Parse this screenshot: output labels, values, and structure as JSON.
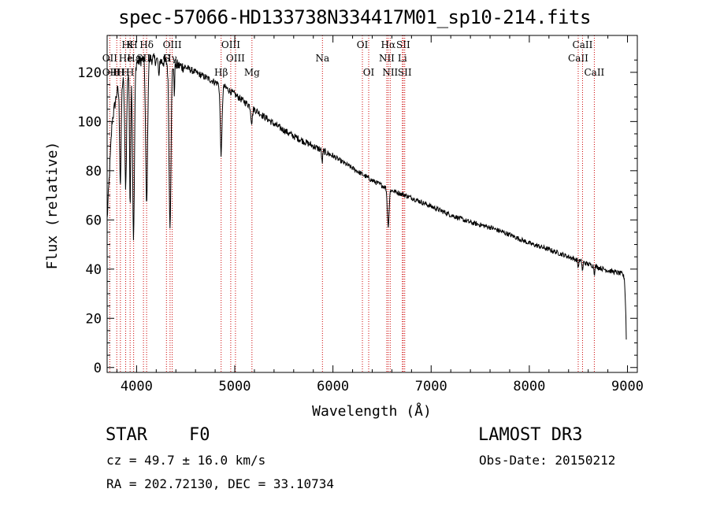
{
  "chart_data": {
    "type": "line",
    "title": "spec-57066-HD133738N334417M01_sp10-214.fits",
    "xlabel": "Wavelength (Å)",
    "ylabel": "Flux (relative)",
    "xlim": [
      3700,
      9100
    ],
    "ylim": [
      -2,
      135
    ],
    "x_ticks": [
      4000,
      5000,
      6000,
      7000,
      8000,
      9000
    ],
    "y_ticks": [
      0,
      20,
      40,
      60,
      80,
      100,
      120
    ],
    "line_color": "#000000",
    "marker_color": "#cc0000",
    "continuum_points": [
      {
        "x": 3700,
        "y": 60
      },
      {
        "x": 3750,
        "y": 100
      },
      {
        "x": 3800,
        "y": 112
      },
      {
        "x": 3900,
        "y": 120
      },
      {
        "x": 4000,
        "y": 124
      },
      {
        "x": 4100,
        "y": 126
      },
      {
        "x": 4200,
        "y": 125
      },
      {
        "x": 4300,
        "y": 124
      },
      {
        "x": 4400,
        "y": 123
      },
      {
        "x": 4500,
        "y": 122
      },
      {
        "x": 4600,
        "y": 120
      },
      {
        "x": 4700,
        "y": 118
      },
      {
        "x": 4800,
        "y": 116
      },
      {
        "x": 4900,
        "y": 114
      },
      {
        "x": 5000,
        "y": 111
      },
      {
        "x": 5200,
        "y": 105
      },
      {
        "x": 5400,
        "y": 99
      },
      {
        "x": 5600,
        "y": 94
      },
      {
        "x": 5800,
        "y": 90
      },
      {
        "x": 6000,
        "y": 86
      },
      {
        "x": 6200,
        "y": 81
      },
      {
        "x": 6400,
        "y": 76
      },
      {
        "x": 6600,
        "y": 72
      },
      {
        "x": 6800,
        "y": 69
      },
      {
        "x": 7000,
        "y": 65.5
      },
      {
        "x": 7200,
        "y": 62
      },
      {
        "x": 7400,
        "y": 59
      },
      {
        "x": 7600,
        "y": 57
      },
      {
        "x": 7800,
        "y": 54
      },
      {
        "x": 8000,
        "y": 50.5
      },
      {
        "x": 8200,
        "y": 48
      },
      {
        "x": 8400,
        "y": 45
      },
      {
        "x": 8600,
        "y": 42
      },
      {
        "x": 8800,
        "y": 39.5
      },
      {
        "x": 8950,
        "y": 38
      },
      {
        "x": 8970,
        "y": 36
      },
      {
        "x": 8985,
        "y": 20
      },
      {
        "x": 8990,
        "y": 5
      }
    ],
    "absorption_lines": [
      {
        "center": 3835,
        "depth": 40,
        "width": 8
      },
      {
        "center": 3889,
        "depth": 45,
        "width": 9
      },
      {
        "center": 3934,
        "depth": 55,
        "width": 6
      },
      {
        "center": 3969,
        "depth": 70,
        "width": 9
      },
      {
        "center": 4102,
        "depth": 60,
        "width": 10
      },
      {
        "center": 4226,
        "depth": 8,
        "width": 4
      },
      {
        "center": 4340,
        "depth": 65,
        "width": 10
      },
      {
        "center": 4384,
        "depth": 12,
        "width": 4
      },
      {
        "center": 4861,
        "depth": 28,
        "width": 9
      },
      {
        "center": 5172,
        "depth": 6,
        "width": 8
      },
      {
        "center": 5890,
        "depth": 5,
        "width": 5
      },
      {
        "center": 6563,
        "depth": 15,
        "width": 9
      },
      {
        "center": 8498,
        "depth": 3,
        "width": 4
      },
      {
        "center": 8542,
        "depth": 4,
        "width": 4
      },
      {
        "center": 8662,
        "depth": 3,
        "width": 4
      }
    ],
    "line_markers": [
      {
        "wavelength": 3727,
        "labels": [
          {
            "text": "OII",
            "row": 2
          },
          {
            "text": "OII",
            "row": 3
          }
        ]
      },
      {
        "wavelength": 3798,
        "labels": [
          {
            "text": "H",
            "row": 3
          }
        ]
      },
      {
        "wavelength": 3835,
        "labels": [
          {
            "text": "H",
            "row": 3
          }
        ]
      },
      {
        "wavelength": 3889,
        "labels": [
          {
            "text": "H",
            "row": 1
          },
          {
            "text": "He",
            "row": 2
          },
          {
            "text": "H",
            "row": 3
          }
        ]
      },
      {
        "wavelength": 3934,
        "labels": [
          {
            "text": "K",
            "row": 1
          },
          {
            "text": "H",
            "row": 3
          }
        ]
      },
      {
        "wavelength": 3970,
        "labels": [
          {
            "text": "H",
            "row": 1
          },
          {
            "text": "Hε",
            "row": 2
          }
        ]
      },
      {
        "wavelength": 4070,
        "labels": [
          {
            "text": "SII",
            "row": 2
          }
        ]
      },
      {
        "wavelength": 4102,
        "labels": [
          {
            "text": "Hδ",
            "row": 1
          }
        ]
      },
      {
        "wavelength": 4304,
        "labels": [
          {
            "text": "G",
            "row": 2
          }
        ]
      },
      {
        "wavelength": 4341,
        "labels": [
          {
            "text": "Hγ",
            "row": 2
          }
        ]
      },
      {
        "wavelength": 4363,
        "labels": [
          {
            "text": "OIII",
            "row": 1
          }
        ]
      },
      {
        "wavelength": 4861,
        "labels": [
          {
            "text": "Hβ",
            "row": 3
          }
        ]
      },
      {
        "wavelength": 4959,
        "labels": [
          {
            "text": "OIII",
            "row": 1
          }
        ]
      },
      {
        "wavelength": 5007,
        "labels": [
          {
            "text": "OIII",
            "row": 2
          }
        ]
      },
      {
        "wavelength": 5175,
        "labels": [
          {
            "text": "Mg",
            "row": 3
          }
        ]
      },
      {
        "wavelength": 5893,
        "labels": [
          {
            "text": "Na",
            "row": 2
          }
        ]
      },
      {
        "wavelength": 6300,
        "labels": [
          {
            "text": "OI",
            "row": 1
          }
        ]
      },
      {
        "wavelength": 6364,
        "labels": [
          {
            "text": "OI",
            "row": 3
          }
        ]
      },
      {
        "wavelength": 6548,
        "labels": [
          {
            "text": "NII",
            "row": 2
          }
        ]
      },
      {
        "wavelength": 6563,
        "labels": [
          {
            "text": "Hα",
            "row": 1
          }
        ]
      },
      {
        "wavelength": 6583,
        "labels": [
          {
            "text": "NII",
            "row": 3
          }
        ]
      },
      {
        "wavelength": 6707,
        "labels": [
          {
            "text": "Li",
            "row": 2
          }
        ]
      },
      {
        "wavelength": 6716,
        "labels": [
          {
            "text": "SII",
            "row": 1
          }
        ]
      },
      {
        "wavelength": 6731,
        "labels": [
          {
            "text": "SII",
            "row": 3
          }
        ]
      },
      {
        "wavelength": 8498,
        "labels": [
          {
            "text": "CaII",
            "row": 2
          }
        ]
      },
      {
        "wavelength": 8542,
        "labels": [
          {
            "text": "CaII",
            "row": 1
          }
        ]
      },
      {
        "wavelength": 8662,
        "labels": [
          {
            "text": "CaII",
            "row": 3
          }
        ]
      }
    ]
  },
  "info": {
    "object_class": "STAR",
    "subclass": "F0",
    "survey": "LAMOST DR3",
    "redshift_line": "cz = 49.7 ± 16.0 km/s",
    "obs_date_line": "Obs-Date: 20150212",
    "coords_line": "RA = 202.72130, DEC =  33.10734"
  }
}
